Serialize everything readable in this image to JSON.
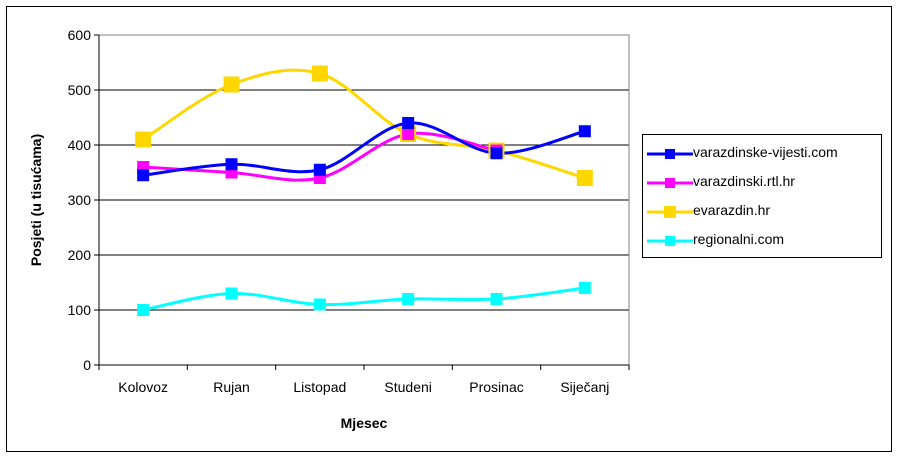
{
  "chart_data": {
    "type": "line",
    "xlabel": "Mjesec",
    "ylabel": "Posjeti (u tisućama)",
    "categories": [
      "Kolovoz",
      "Rujan",
      "Listopad",
      "Studeni",
      "Prosinac",
      "Siječanj"
    ],
    "ylim": [
      0,
      600
    ],
    "yticks": [
      "0",
      "100",
      "200",
      "300",
      "400",
      "500",
      "600"
    ],
    "grid": true,
    "legend_position": "right",
    "series": [
      {
        "name": "varazdinske-vijesti.com",
        "color": "#0000FF",
        "values": [
          345,
          365,
          355,
          440,
          385,
          425
        ]
      },
      {
        "name": "varazdinski.rtl.hr",
        "color": "#FF00FF",
        "values": [
          360,
          350,
          340,
          420,
          390,
          null
        ]
      },
      {
        "name": "evarazdin.hr",
        "color": "#FFD700",
        "values": [
          410,
          510,
          530,
          420,
          390,
          340
        ]
      },
      {
        "name": "regionalni.com",
        "color": "#00FFFF",
        "values": [
          100,
          130,
          110,
          120,
          120,
          140
        ]
      }
    ]
  }
}
